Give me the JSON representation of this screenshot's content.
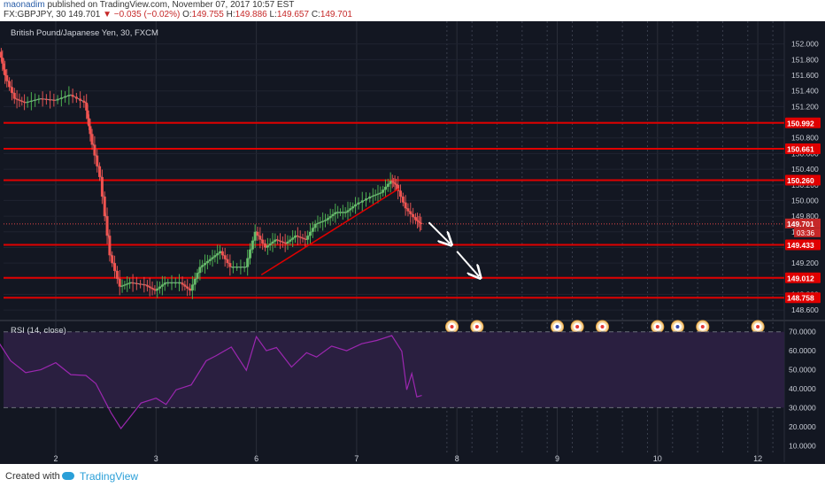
{
  "header": {
    "author": "maonadim",
    "published": "published on TradingView.com, November 07, 2017 10:57 EST",
    "symbol_line": "FX:GBPJPY, 30",
    "last": "149.701",
    "change": "▼ −0.035 (−0.02%)",
    "ohlc": {
      "o_label": "O:",
      "o": "149.755",
      "h_label": "H:",
      "h": "149.886",
      "l_label": "L:",
      "l": "149.657",
      "c_label": "C:",
      "c": "149.701"
    }
  },
  "chart_data": [
    {
      "type": "line",
      "title": "British Pound/Japanese Yen, 30, FXCM",
      "ylim": [
        148.5,
        152.2
      ],
      "yticks": [
        "152.000",
        "151.800",
        "151.600",
        "151.400",
        "151.200",
        "151.000",
        "150.800",
        "150.600",
        "150.400",
        "150.200",
        "150.000",
        "149.800",
        "149.600",
        "149.400",
        "149.200",
        "149.000",
        "148.800",
        "148.600"
      ],
      "ytick_values": [
        152.0,
        151.8,
        151.6,
        151.4,
        151.2,
        151.0,
        150.8,
        150.6,
        150.4,
        150.2,
        150.0,
        149.8,
        149.6,
        149.4,
        149.2,
        149.0,
        148.8,
        148.6
      ],
      "xticks": [
        "2",
        "3",
        "6",
        "7",
        "8",
        "9",
        "10",
        "12"
      ],
      "x_day_positions": [
        1,
        2,
        3,
        4,
        5,
        6,
        7,
        8
      ],
      "horizontal_levels": [
        150.992,
        150.661,
        150.26,
        149.433,
        149.012,
        148.758
      ],
      "level_labels": [
        "150.992",
        "150.661",
        "150.260",
        "149.433",
        "149.012",
        "148.758"
      ],
      "current_price": 149.701,
      "current_price_label": "149.701",
      "countdown_label": "03:36",
      "price_path": [
        [
          0.45,
          151.9
        ],
        [
          0.5,
          151.6
        ],
        [
          0.6,
          151.3
        ],
        [
          0.7,
          151.25
        ],
        [
          0.85,
          151.3
        ],
        [
          1.0,
          151.28
        ],
        [
          1.15,
          151.35
        ],
        [
          1.3,
          151.25
        ],
        [
          1.35,
          150.85
        ],
        [
          1.45,
          150.3
        ],
        [
          1.55,
          149.3
        ],
        [
          1.65,
          148.9
        ],
        [
          1.75,
          148.95
        ],
        [
          1.9,
          148.92
        ],
        [
          2.0,
          148.85
        ],
        [
          2.1,
          148.95
        ],
        [
          2.25,
          148.95
        ],
        [
          2.35,
          148.85
        ],
        [
          2.45,
          149.15
        ],
        [
          2.55,
          149.25
        ],
        [
          2.65,
          149.35
        ],
        [
          2.75,
          149.15
        ],
        [
          2.9,
          149.15
        ],
        [
          3.0,
          149.6
        ],
        [
          3.1,
          149.4
        ],
        [
          3.2,
          149.5
        ],
        [
          3.3,
          149.45
        ],
        [
          3.4,
          149.55
        ],
        [
          3.5,
          149.5
        ],
        [
          3.6,
          149.7
        ],
        [
          3.7,
          149.75
        ],
        [
          3.8,
          149.85
        ],
        [
          3.9,
          149.85
        ],
        [
          4.0,
          149.95
        ],
        [
          4.15,
          150.05
        ],
        [
          4.25,
          150.1
        ],
        [
          4.35,
          150.25
        ],
        [
          4.4,
          150.2
        ],
        [
          4.5,
          149.9
        ],
        [
          4.6,
          149.75
        ],
        [
          4.65,
          149.7
        ]
      ],
      "trendline": [
        [
          3.05,
          149.05
        ],
        [
          4.42,
          150.15
        ]
      ],
      "arrows": [
        [
          [
            4.72,
            149.72
          ],
          [
            4.93,
            149.45
          ]
        ],
        [
          [
            5.0,
            149.35
          ],
          [
            5.22,
            149.03
          ]
        ]
      ],
      "event_icons_x": [
        4.95,
        5.2,
        6.0,
        6.2,
        6.45,
        7.0,
        7.2,
        7.45,
        8.0
      ]
    },
    {
      "type": "line",
      "title": "RSI (14, close)",
      "ylim": [
        5,
        75
      ],
      "yticks": [
        "70.0000",
        "60.0000",
        "50.0000",
        "40.0000",
        "30.0000",
        "20.0000",
        "10.0000"
      ],
      "ytick_values": [
        70,
        60,
        50,
        40,
        30,
        20,
        10
      ],
      "bands": [
        30,
        70
      ],
      "series": [
        {
          "x": [
            0.4,
            0.55,
            0.7,
            0.85,
            1.0,
            1.15,
            1.3,
            1.4,
            1.55,
            1.65,
            1.75,
            1.85,
            2.0,
            2.1,
            2.2,
            2.35,
            2.5,
            2.6,
            2.75,
            2.9,
            3.0,
            3.1,
            3.2,
            3.35,
            3.5,
            3.6,
            3.75,
            3.9,
            4.05,
            4.2,
            4.35,
            4.45,
            4.5,
            4.55,
            4.6,
            4.65
          ],
          "y": [
            67,
            55,
            49,
            50,
            54,
            48,
            47,
            43,
            28,
            19,
            26,
            33,
            35,
            32,
            40,
            42,
            55,
            58,
            62,
            50,
            68,
            60,
            62,
            52,
            59,
            57,
            63,
            60,
            64,
            66,
            68,
            60,
            40,
            48,
            36,
            37
          ]
        }
      ]
    }
  ],
  "footer": {
    "created": "Created with",
    "brand": "TradingView"
  },
  "colors": {
    "bg": "#131722",
    "level": "#e00000",
    "trend": "#e00000",
    "rsi": "#9c27b0",
    "rsi_fill": "#2a1f40",
    "arrow": "#ffffff"
  }
}
